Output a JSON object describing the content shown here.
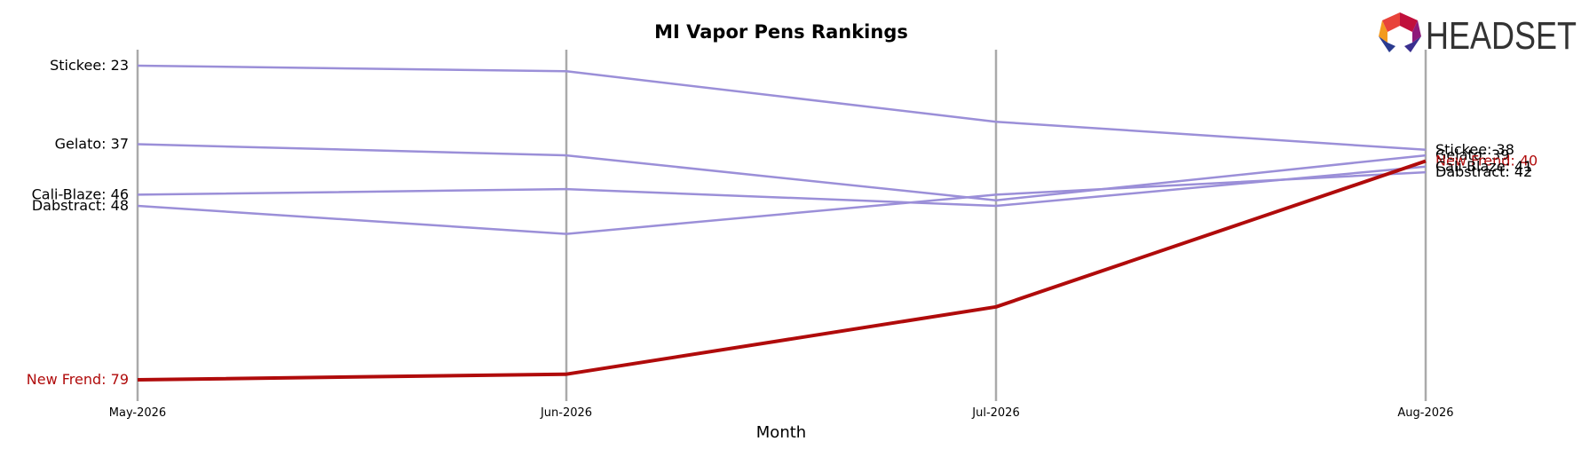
{
  "chart_data": {
    "type": "line",
    "title": "MI Vapor Pens Rankings",
    "xlabel": "Month",
    "ylabel": "",
    "x": [
      "May-2026",
      "Jun-2026",
      "Jul-2026",
      "Aug-2026"
    ],
    "y_inverted": true,
    "grid": "vertical month lines",
    "series": [
      {
        "name": "Stickee",
        "values": [
          23,
          24,
          null,
          38
        ],
        "approx_jul": 33,
        "color": "#9b8fd8",
        "highlight": false
      },
      {
        "name": "Gelato",
        "values": [
          37,
          39,
          null,
          39
        ],
        "approx_jul": 47,
        "color": "#9b8fd8",
        "highlight": false
      },
      {
        "name": "Cali-Blaze",
        "values": [
          46,
          45,
          null,
          41
        ],
        "approx_jul": 48,
        "color": "#9b8fd8",
        "highlight": false
      },
      {
        "name": "Dabstract",
        "values": [
          48,
          53,
          null,
          42
        ],
        "approx_jul": 46,
        "color": "#9b8fd8",
        "highlight": false
      },
      {
        "name": "New Frend",
        "values": [
          79,
          78,
          null,
          40
        ],
        "approx_jul": 66,
        "color": "#b00b0b",
        "highlight": true
      }
    ],
    "start_labels": [
      "Stickee: 23",
      "Gelato: 37",
      "Cali-Blaze: 46",
      "Dabstract: 48",
      "New Frend: 79"
    ],
    "end_labels": [
      "Stickee: 38",
      "Gelato: 39",
      "New Frend: 40",
      "Cali-Blaze: 41",
      "Dabstract: 42"
    ]
  },
  "logo": {
    "text": "HEADSET"
  }
}
